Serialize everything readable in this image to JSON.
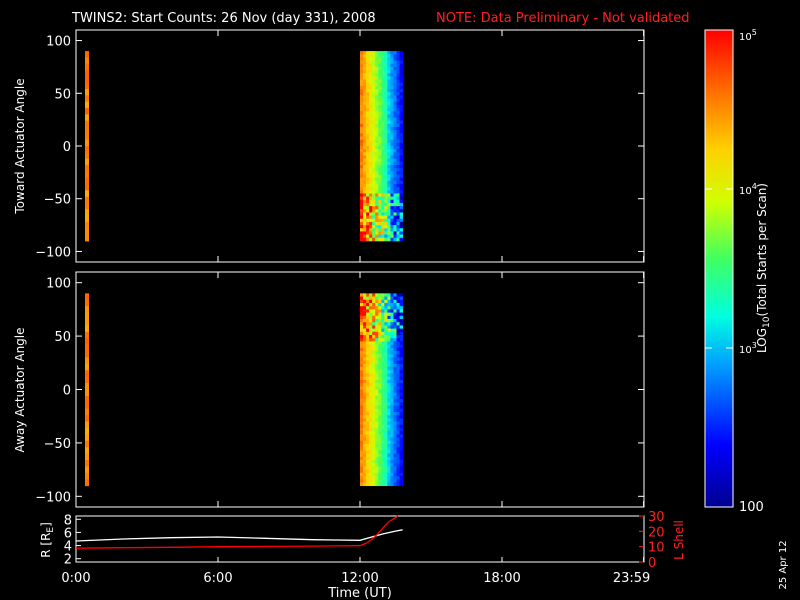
{
  "header": {
    "title": "TWINS2: Start Counts: 26 Nov (day 331), 2008",
    "note": "NOTE: Data Preliminary - Not validated",
    "note_color": "#ff2020"
  },
  "side_date": "25 Apr 12",
  "colorbar": {
    "label": "LOG10(Total Starts per Scan)",
    "label_main": "LOG",
    "label_sub": "10",
    "label_rest": "(Total Starts per Scan)",
    "tick_labels": [
      "100",
      "10",
      "3",
      "10",
      "4",
      "10",
      "5"
    ],
    "ticks": [
      {
        "text": "100",
        "base": "",
        "exp": "",
        "value": 100
      },
      {
        "text": "10^3",
        "base": "10",
        "exp": "3",
        "value": 1000
      },
      {
        "text": "10^4",
        "base": "10",
        "exp": "4",
        "value": 10000
      },
      {
        "text": "10^5",
        "base": "10",
        "exp": "5",
        "value": 100000
      }
    ],
    "scale": "log",
    "range": [
      100,
      100000
    ],
    "colormap": "rainbow"
  },
  "chart_data": [
    {
      "type": "heatmap",
      "name": "toward",
      "ylabel": "Toward Actuator Angle",
      "xlim": [
        0,
        24
      ],
      "ylim": [
        -110,
        110
      ],
      "yticks": [
        -100,
        -50,
        0,
        50,
        100
      ],
      "ytick_labels": [
        "−100",
        "−50",
        "0",
        "50",
        "100"
      ],
      "x_data_extent": [
        12.0,
        13.8
      ],
      "y_data_extent": [
        -90,
        90
      ],
      "x_spike": 0.0,
      "description_color": "log10 counts, mostly 10^4-10^5 in the left half, 10^3-10^4 right"
    },
    {
      "type": "heatmap",
      "name": "away",
      "ylabel": "Away Actuator Angle",
      "xlim": [
        0,
        24
      ],
      "ylim": [
        -110,
        110
      ],
      "yticks": [
        -100,
        -50,
        0,
        50,
        100
      ],
      "ytick_labels": [
        "−100",
        "−50",
        "0",
        "50",
        "100"
      ],
      "x_data_extent": [
        12.0,
        13.8
      ],
      "y_data_extent": [
        -90,
        90
      ],
      "x_spike": 0.0
    },
    {
      "type": "line",
      "name": "ephemeris",
      "ylabel_left": "R [RE]",
      "ylabel_left_main": "R [R",
      "ylabel_left_sub": "E",
      "ylabel_left_end": "]",
      "ylabel_right": "L Shell",
      "xlabel": "Time (UT)",
      "xticks": [
        0,
        6,
        12,
        18,
        23.983
      ],
      "xtick_labels": [
        "0:00",
        "6:00",
        "12:00",
        "18:00",
        "23:59"
      ],
      "xlim": [
        0,
        24
      ],
      "ylim_left": [
        1.5,
        8.5
      ],
      "yticks_left": [
        2,
        4,
        6,
        8
      ],
      "ylim_right": [
        0,
        30
      ],
      "yticks_right": [
        0,
        10,
        20,
        30
      ],
      "series": [
        {
          "axis": "left",
          "color": "#ffffff",
          "x": [
            0.0,
            2.0,
            4.0,
            6.0,
            8.0,
            10.0,
            11.0,
            12.0,
            12.5,
            13.0,
            13.5,
            13.8
          ],
          "y": [
            4.7,
            5.0,
            5.2,
            5.3,
            5.1,
            4.9,
            4.85,
            4.8,
            5.3,
            5.8,
            6.2,
            6.4
          ]
        },
        {
          "axis": "right",
          "color": "#ff0000",
          "x": [
            0.0,
            2.0,
            4.0,
            6.0,
            8.0,
            10.0,
            11.0,
            12.0,
            12.3,
            12.6,
            12.9,
            13.2,
            13.6
          ],
          "y": [
            9.0,
            9.3,
            9.6,
            10.0,
            10.2,
            10.4,
            10.5,
            10.6,
            12.5,
            16.0,
            21.0,
            26.0,
            31.0
          ]
        }
      ]
    }
  ]
}
